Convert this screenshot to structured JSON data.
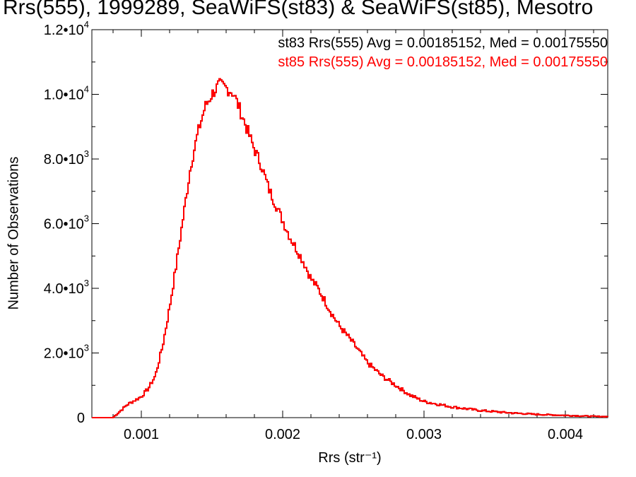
{
  "chart_data": {
    "type": "histogram",
    "title": "Rrs(555), 1999289, SeaWiFS(st83) & SeaWiFS(st85), Mesotro",
    "xlabel": "Rrs (str⁻¹)",
    "ylabel": "Number of Observations",
    "xlim": [
      0.00065,
      0.0043
    ],
    "ylim": [
      0,
      12000
    ],
    "x_ticks": [
      {
        "value": 0.001,
        "label": "0.001"
      },
      {
        "value": 0.002,
        "label": "0.002"
      },
      {
        "value": 0.003,
        "label": "0.003"
      },
      {
        "value": 0.004,
        "label": "0.004"
      }
    ],
    "y_ticks": [
      {
        "value": 0,
        "label": "0",
        "exp": ""
      },
      {
        "value": 2000,
        "label": "2.0•10",
        "exp": "3"
      },
      {
        "value": 4000,
        "label": "4.0•10",
        "exp": "3"
      },
      {
        "value": 6000,
        "label": "6.0•10",
        "exp": "3"
      },
      {
        "value": 8000,
        "label": "8.0•10",
        "exp": "3"
      },
      {
        "value": 10000,
        "label": "1.0•10",
        "exp": "4"
      },
      {
        "value": 12000,
        "label": "1.2•10",
        "exp": "4"
      }
    ],
    "annotations": [
      "st83 Rrs(555) Avg = 0.00185152, Med = 0.00175550",
      "st85 Rrs(555) Avg = 0.00185152, Med = 0.00175550"
    ],
    "series": [
      {
        "name": "st83",
        "color": "#000000"
      },
      {
        "name": "st85",
        "color": "#ff0000"
      }
    ],
    "x": [
      0.0008,
      0.0009,
      0.001,
      0.00105,
      0.0011,
      0.00115,
      0.0012,
      0.00125,
      0.0013,
      0.00135,
      0.0014,
      0.00145,
      0.0015,
      0.00155,
      0.0016,
      0.00165,
      0.0017,
      0.00175,
      0.0018,
      0.00185,
      0.0019,
      0.00195,
      0.002,
      0.00205,
      0.0021,
      0.00215,
      0.0022,
      0.00225,
      0.0023,
      0.00235,
      0.0024,
      0.0025,
      0.0026,
      0.0027,
      0.0028,
      0.0029,
      0.003,
      0.0032,
      0.0034,
      0.0036,
      0.0038,
      0.004,
      0.0042,
      0.0043
    ],
    "y": [
      0,
      400,
      650,
      900,
      1300,
      2200,
      3400,
      4800,
      6300,
      7800,
      8800,
      9600,
      10000,
      10300,
      10200,
      10050,
      9500,
      8900,
      8300,
      7800,
      7100,
      6600,
      6100,
      5600,
      5200,
      4800,
      4300,
      4000,
      3600,
      3200,
      2850,
      2300,
      1700,
      1300,
      1000,
      700,
      500,
      330,
      220,
      150,
      100,
      70,
      40,
      30
    ]
  }
}
